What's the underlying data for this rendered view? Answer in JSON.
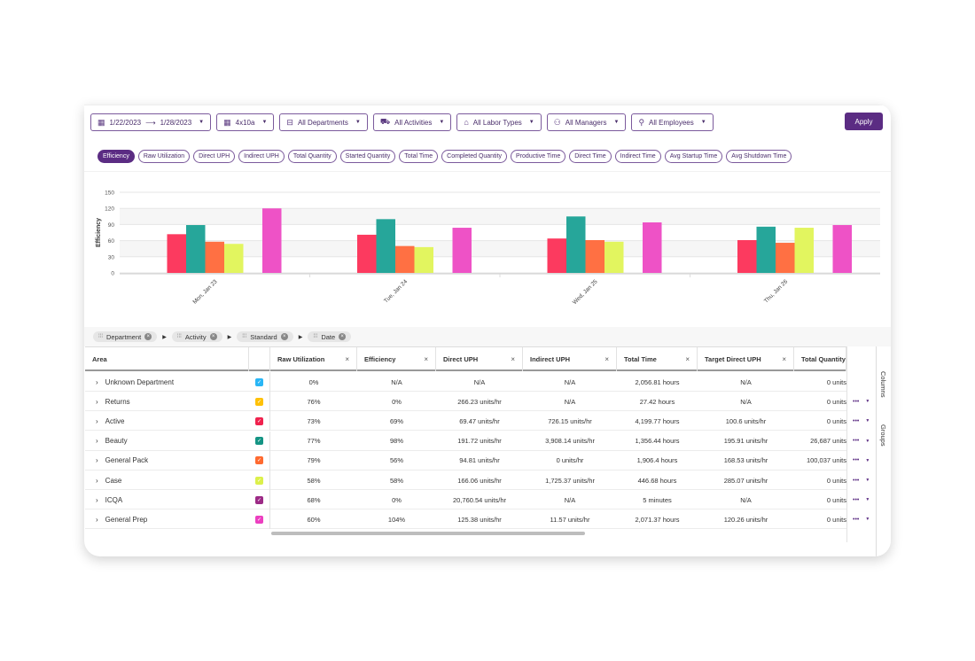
{
  "filters": {
    "date_start": "1/22/2023",
    "date_end": "1/28/2023",
    "shift": "4x10a",
    "departments": "All Departments",
    "activities": "All Activities",
    "labor_types": "All Labor Types",
    "managers": "All Managers",
    "employees": "All Employees",
    "apply": "Apply"
  },
  "metrics": [
    "Efficiency",
    "Raw Utilization",
    "Direct UPH",
    "Indirect UPH",
    "Total Quantity",
    "Started Quantity",
    "Total Time",
    "Completed Quantity",
    "Productive Time",
    "Direct Time",
    "Indirect Time",
    "Avg Startup Time",
    "Avg Shutdown Time"
  ],
  "active_metric": "Efficiency",
  "chart_data": {
    "type": "bar",
    "ylabel": "Efficiency",
    "ylim": [
      0,
      150
    ],
    "yticks": [
      0,
      30,
      60,
      90,
      120,
      150
    ],
    "grid": true,
    "categories": [
      "Mon, Jan 23",
      "Tue, Jan 24",
      "Wed, Jan 25",
      "Thu, Jan 26"
    ],
    "series": [
      {
        "color": "#ffc107",
        "values": [
          0,
          0,
          0,
          0
        ]
      },
      {
        "color": "#fc3a5f",
        "values": [
          72,
          71,
          64,
          61
        ]
      },
      {
        "color": "#26a69a",
        "values": [
          89,
          100,
          105,
          86
        ]
      },
      {
        "color": "#ff7043",
        "values": [
          58,
          50,
          61,
          56
        ]
      },
      {
        "color": "#e2f55f",
        "values": [
          54,
          48,
          58,
          84
        ]
      },
      {
        "color": "#9c2a86",
        "values": [
          0,
          0,
          0,
          0
        ]
      },
      {
        "color": "#ee52c6",
        "values": [
          120,
          84,
          94,
          89
        ]
      }
    ]
  },
  "groupings": [
    "Department",
    "Activity",
    "Standard",
    "Date"
  ],
  "table": {
    "columns": [
      "Area",
      "",
      "Raw Utilization",
      "Efficiency",
      "Direct UPH",
      "Indirect UPH",
      "Total Time",
      "Target Direct UPH",
      "Total Quantity"
    ],
    "rows": [
      {
        "area": "Unknown Department",
        "color": "#29b6f6",
        "cells": [
          "0%",
          "N/A",
          "N/A",
          "N/A",
          "2,056.81 hours",
          "N/A",
          "0 units"
        ],
        "actions": false
      },
      {
        "area": "Returns",
        "color": "#ffc107",
        "cells": [
          "76%",
          "0%",
          "266.23 units/hr",
          "N/A",
          "27.42 hours",
          "N/A",
          "0 units"
        ],
        "actions": true
      },
      {
        "area": "Active",
        "color": "#f0224e",
        "cells": [
          "73%",
          "69%",
          "69.47 units/hr",
          "726.15 units/hr",
          "4,199.77 hours",
          "100.6 units/hr",
          "0 units"
        ],
        "actions": true
      },
      {
        "area": "Beauty",
        "color": "#149484",
        "cells": [
          "77%",
          "98%",
          "191.72 units/hr",
          "3,908.14 units/hr",
          "1,356.44 hours",
          "195.91 units/hr",
          "26,687 units"
        ],
        "actions": true
      },
      {
        "area": "General Pack",
        "color": "#ff6a30",
        "cells": [
          "79%",
          "56%",
          "94.81 units/hr",
          "0 units/hr",
          "1,906.4 hours",
          "168.53 units/hr",
          "100,037 units"
        ],
        "actions": true
      },
      {
        "area": "Case",
        "color": "#dcf04a",
        "cells": [
          "58%",
          "58%",
          "166.06 units/hr",
          "1,725.37 units/hr",
          "446.68 hours",
          "285.07 units/hr",
          "0 units"
        ],
        "actions": true
      },
      {
        "area": "ICQA",
        "color": "#9c2a86",
        "cells": [
          "68%",
          "0%",
          "20,760.54 units/hr",
          "N/A",
          "5 minutes",
          "N/A",
          "0 units"
        ],
        "actions": true
      },
      {
        "area": "General Prep",
        "color": "#ec3fc0",
        "cells": [
          "60%",
          "104%",
          "125.38 units/hr",
          "11.57 units/hr",
          "2,071.37 hours",
          "120.26 units/hr",
          "0 units"
        ],
        "actions": true
      }
    ]
  },
  "side_panel": {
    "columns": "Columns",
    "groups": "Groups"
  }
}
